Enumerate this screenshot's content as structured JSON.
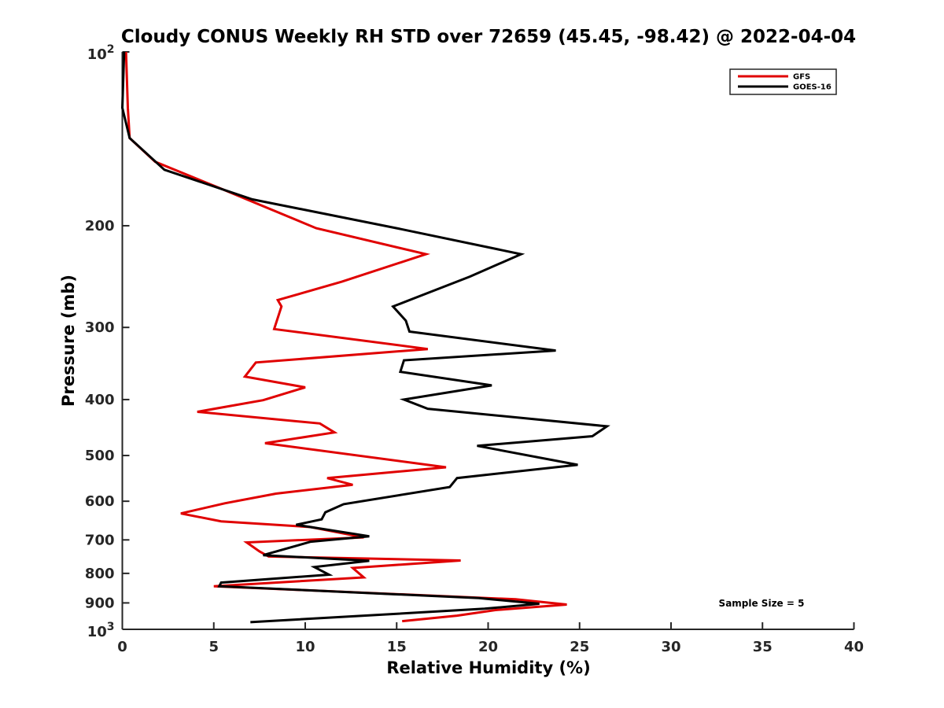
{
  "chart_data": {
    "type": "line",
    "title": "Cloudy CONUS Weekly RH STD over 72659 (45.45, -98.42) @ 2022-04-04",
    "xlabel": "Relative Humidity (%)",
    "ylabel": "Pressure (mb)",
    "xlim": [
      0,
      40
    ],
    "ylim": [
      1000,
      100
    ],
    "y_scale": "log",
    "y_reversed": true,
    "x_ticks": [
      "0",
      "5",
      "10",
      "15",
      "20",
      "25",
      "30",
      "35",
      "40"
    ],
    "y_ticks": [
      {
        "value": 100,
        "base": "10",
        "exp": "2"
      },
      {
        "value": 200,
        "label": "200"
      },
      {
        "value": 300,
        "label": "300"
      },
      {
        "value": 400,
        "label": "400"
      },
      {
        "value": 500,
        "label": "500"
      },
      {
        "value": 600,
        "label": "600"
      },
      {
        "value": 700,
        "label": "700"
      },
      {
        "value": 800,
        "label": "800"
      },
      {
        "value": 900,
        "label": "900"
      },
      {
        "value": 1000,
        "base": "10",
        "exp": "3"
      }
    ],
    "grid": false,
    "legend_position": "top-right",
    "annotation": "Sample Size = 5",
    "series": [
      {
        "name": "GFS",
        "color": "#e00000",
        "points": [
          [
            0.2,
            100
          ],
          [
            0.3,
            125
          ],
          [
            0.4,
            141
          ],
          [
            1.8,
            155
          ],
          [
            5.3,
            172
          ],
          [
            10.6,
            202
          ],
          [
            16.6,
            224
          ],
          [
            12.0,
            250
          ],
          [
            8.5,
            269
          ],
          [
            8.7,
            276
          ],
          [
            8.3,
            302
          ],
          [
            16.7,
            327
          ],
          [
            7.3,
            345
          ],
          [
            6.7,
            365
          ],
          [
            10.0,
            381
          ],
          [
            7.7,
            401
          ],
          [
            4.1,
            420
          ],
          [
            10.8,
            440
          ],
          [
            11.6,
            456
          ],
          [
            7.8,
            476
          ],
          [
            17.7,
            524
          ],
          [
            11.2,
            547
          ],
          [
            12.6,
            562
          ],
          [
            8.4,
            582
          ],
          [
            5.6,
            605
          ],
          [
            3.2,
            630
          ],
          [
            5.4,
            650
          ],
          [
            10.3,
            665
          ],
          [
            13.2,
            693
          ],
          [
            6.8,
            707
          ],
          [
            7.5,
            733
          ],
          [
            8.0,
            748
          ],
          [
            18.5,
            760
          ],
          [
            12.6,
            783
          ],
          [
            13.2,
            813
          ],
          [
            5.0,
            842
          ],
          [
            21.5,
            887
          ],
          [
            24.3,
            906
          ],
          [
            20.4,
            926
          ],
          [
            18.3,
            947
          ],
          [
            15.3,
            968
          ]
        ]
      },
      {
        "name": "GOES-16",
        "color": "#000000",
        "points": [
          [
            0.1,
            100
          ],
          [
            0.0,
            125
          ],
          [
            0.4,
            141
          ],
          [
            2.3,
            160
          ],
          [
            7.1,
            180
          ],
          [
            15.0,
            202
          ],
          [
            21.8,
            224
          ],
          [
            19.0,
            245
          ],
          [
            14.8,
            276
          ],
          [
            15.5,
            292
          ],
          [
            15.7,
            305
          ],
          [
            23.7,
            329
          ],
          [
            15.4,
            342
          ],
          [
            15.2,
            358
          ],
          [
            20.2,
            378
          ],
          [
            15.4,
            400
          ],
          [
            16.7,
            415
          ],
          [
            26.5,
            445
          ],
          [
            25.7,
            463
          ],
          [
            19.4,
            481
          ],
          [
            24.9,
            519
          ],
          [
            18.3,
            547
          ],
          [
            17.9,
            567
          ],
          [
            12.1,
            607
          ],
          [
            11.1,
            627
          ],
          [
            10.9,
            645
          ],
          [
            9.5,
            659
          ],
          [
            13.5,
            690
          ],
          [
            10.3,
            705
          ],
          [
            7.7,
            744
          ],
          [
            13.5,
            761
          ],
          [
            10.5,
            780
          ],
          [
            11.3,
            804
          ],
          [
            5.4,
            830
          ],
          [
            5.3,
            842
          ],
          [
            19.5,
            883
          ],
          [
            22.8,
            903
          ],
          [
            19.8,
            921
          ],
          [
            7.0,
            972
          ]
        ]
      }
    ]
  }
}
